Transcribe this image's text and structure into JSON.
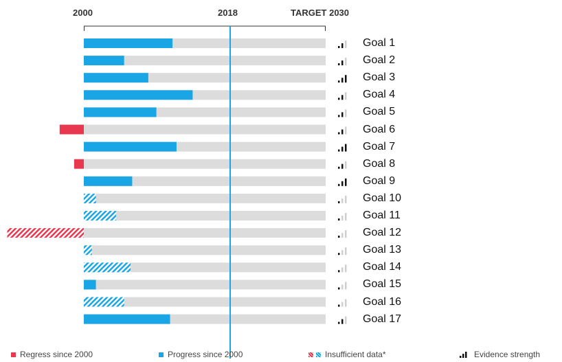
{
  "chart_data": {
    "type": "bar",
    "orientation": "horizontal",
    "axis_labels": {
      "start": "2000",
      "current": "2018",
      "target": "TARGET 2030"
    },
    "x_range": [
      2000,
      2030
    ],
    "categories": [
      "Goal 1",
      "Goal 2",
      "Goal 3",
      "Goal 4",
      "Goal 5",
      "Goal 6",
      "Goal 7",
      "Goal 8",
      "Goal 9",
      "Goal 10",
      "Goal 11",
      "Goal 12",
      "Goal 13",
      "Goal 14",
      "Goal 15",
      "Goal 16",
      "Goal 17"
    ],
    "progress": [
      11,
      5,
      8,
      13.5,
      9,
      -3,
      11.5,
      -1.2,
      6,
      1.5,
      4,
      -9.5,
      1,
      5.8,
      1.5,
      5,
      10.7
    ],
    "insufficient_data": [
      false,
      false,
      false,
      false,
      false,
      false,
      false,
      false,
      false,
      true,
      true,
      true,
      true,
      true,
      false,
      true,
      false
    ],
    "evidence_strength": [
      2,
      2,
      3,
      2,
      2,
      2,
      3,
      2,
      3,
      1,
      1,
      1,
      1,
      1,
      1,
      1,
      2
    ],
    "colors": {
      "progress": "#1aa6e4",
      "regress": "#e8384f",
      "track": "#dcdcdc",
      "current_line": "#1aa6e4",
      "evidence": "#111111",
      "evidence_faint": "#cfcfcf"
    }
  },
  "legend": {
    "regress": "Regress since 2000",
    "progress": "Progress since 2000",
    "insufficient": "Insufficient data*",
    "evidence": "Evidence strength"
  }
}
